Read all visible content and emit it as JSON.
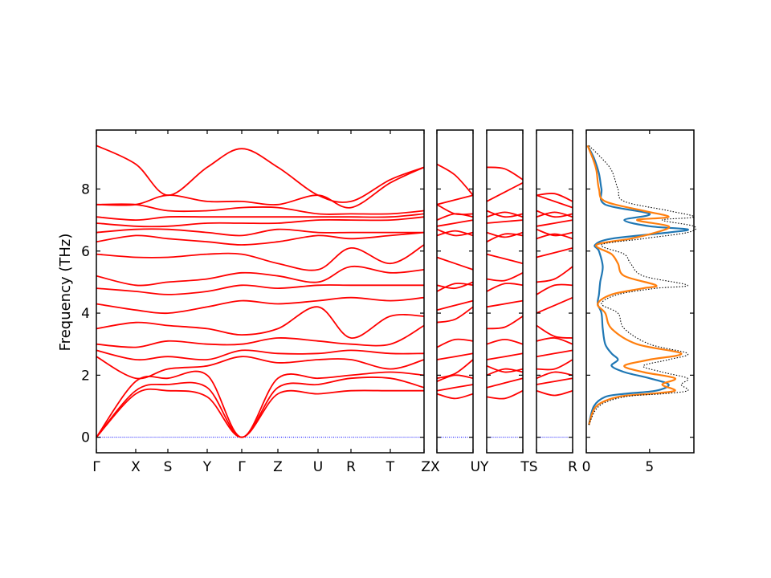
{
  "chart_data": [
    {
      "type": "line",
      "panel": "band-structure",
      "ylabel": "Frequency (THz)",
      "ylim": [
        -0.5,
        9.9
      ],
      "yticks": [
        0,
        2,
        4,
        6,
        8
      ],
      "grid": false,
      "legend": "none",
      "colors": {
        "bands": "#ff0000",
        "zero_line": "#0000ff"
      },
      "segments": [
        {
          "name": "seg1",
          "labels": [
            "Γ",
            "X",
            "S",
            "Y",
            "Γ",
            "Z",
            "U",
            "R",
            "T",
            "Z"
          ]
        },
        {
          "name": "seg2",
          "labels": [
            "X",
            "U"
          ]
        },
        {
          "name": "seg3",
          "labels": [
            "Y",
            "T"
          ]
        },
        {
          "name": "seg4",
          "labels": [
            "S",
            "R"
          ]
        }
      ],
      "point_label_combos": [
        "ZX",
        "UY",
        "TS"
      ],
      "bands_approx": [
        [
          [
            0,
            0
          ],
          [
            1,
            1.4
          ],
          [
            2,
            1.5
          ],
          [
            3,
            1.3
          ],
          [
            4,
            0
          ],
          [
            5,
            1.4
          ],
          [
            6,
            1.4
          ],
          [
            7,
            1.5
          ],
          [
            8,
            1.5
          ],
          [
            9,
            1.5
          ]
        ],
        [
          [
            0,
            0
          ],
          [
            1,
            1.5
          ],
          [
            2,
            1.7
          ],
          [
            3,
            1.6
          ],
          [
            4,
            0
          ],
          [
            5,
            1.6
          ],
          [
            6,
            1.7
          ],
          [
            7,
            1.9
          ],
          [
            8,
            1.9
          ],
          [
            9,
            1.6
          ]
        ],
        [
          [
            0,
            0
          ],
          [
            1,
            1.8
          ],
          [
            2,
            1.9
          ],
          [
            3,
            2.0
          ],
          [
            4,
            0
          ],
          [
            5,
            1.9
          ],
          [
            6,
            1.9
          ],
          [
            7,
            2.0
          ],
          [
            8,
            2.1
          ],
          [
            9,
            2.0
          ]
        ],
        [
          [
            0,
            2.6
          ],
          [
            1,
            1.9
          ],
          [
            2,
            2.2
          ],
          [
            3,
            2.3
          ],
          [
            4,
            2.6
          ],
          [
            5,
            2.4
          ],
          [
            6,
            2.5
          ],
          [
            7,
            2.5
          ],
          [
            8,
            2.2
          ],
          [
            9,
            2.5
          ]
        ],
        [
          [
            0,
            2.8
          ],
          [
            1,
            2.5
          ],
          [
            2,
            2.6
          ],
          [
            3,
            2.5
          ],
          [
            4,
            2.8
          ],
          [
            5,
            2.7
          ],
          [
            6,
            2.7
          ],
          [
            7,
            2.8
          ],
          [
            8,
            2.7
          ],
          [
            9,
            2.7
          ]
        ],
        [
          [
            0,
            3.0
          ],
          [
            1,
            2.9
          ],
          [
            2,
            3.1
          ],
          [
            3,
            3.0
          ],
          [
            4,
            3.0
          ],
          [
            5,
            3.2
          ],
          [
            6,
            3.1
          ],
          [
            7,
            3.0
          ],
          [
            8,
            3.0
          ],
          [
            9,
            3.6
          ]
        ],
        [
          [
            0,
            3.5
          ],
          [
            1,
            3.7
          ],
          [
            2,
            3.6
          ],
          [
            3,
            3.5
          ],
          [
            4,
            3.3
          ],
          [
            5,
            3.5
          ],
          [
            6,
            4.2
          ],
          [
            7,
            3.2
          ],
          [
            8,
            3.9
          ],
          [
            9,
            3.9
          ]
        ],
        [
          [
            0,
            4.3
          ],
          [
            1,
            4.1
          ],
          [
            2,
            4.0
          ],
          [
            3,
            4.2
          ],
          [
            4,
            4.4
          ],
          [
            5,
            4.3
          ],
          [
            6,
            4.4
          ],
          [
            7,
            4.5
          ],
          [
            8,
            4.4
          ],
          [
            9,
            4.5
          ]
        ],
        [
          [
            0,
            4.8
          ],
          [
            1,
            4.7
          ],
          [
            2,
            4.6
          ],
          [
            3,
            4.7
          ],
          [
            4,
            4.9
          ],
          [
            5,
            4.8
          ],
          [
            6,
            4.9
          ],
          [
            7,
            4.9
          ],
          [
            8,
            4.9
          ],
          [
            9,
            4.9
          ]
        ],
        [
          [
            0,
            5.2
          ],
          [
            1,
            4.9
          ],
          [
            2,
            5.0
          ],
          [
            3,
            5.1
          ],
          [
            4,
            5.3
          ],
          [
            5,
            5.2
          ],
          [
            6,
            5.0
          ],
          [
            7,
            5.5
          ],
          [
            8,
            5.3
          ],
          [
            9,
            5.4
          ]
        ],
        [
          [
            0,
            5.9
          ],
          [
            1,
            5.8
          ],
          [
            2,
            5.8
          ],
          [
            3,
            5.9
          ],
          [
            4,
            5.9
          ],
          [
            5,
            5.6
          ],
          [
            6,
            5.4
          ],
          [
            7,
            6.1
          ],
          [
            8,
            5.6
          ],
          [
            9,
            6.2
          ]
        ],
        [
          [
            0,
            6.3
          ],
          [
            1,
            6.5
          ],
          [
            2,
            6.4
          ],
          [
            3,
            6.3
          ],
          [
            4,
            6.2
          ],
          [
            5,
            6.3
          ],
          [
            6,
            6.5
          ],
          [
            7,
            6.4
          ],
          [
            8,
            6.5
          ],
          [
            9,
            6.6
          ]
        ],
        [
          [
            0,
            6.6
          ],
          [
            1,
            6.7
          ],
          [
            2,
            6.7
          ],
          [
            3,
            6.6
          ],
          [
            4,
            6.5
          ],
          [
            5,
            6.7
          ],
          [
            6,
            6.6
          ],
          [
            7,
            6.6
          ],
          [
            8,
            6.6
          ],
          [
            9,
            6.6
          ]
        ],
        [
          [
            0,
            6.9
          ],
          [
            1,
            6.8
          ],
          [
            2,
            6.8
          ],
          [
            3,
            6.9
          ],
          [
            4,
            6.9
          ],
          [
            5,
            6.9
          ],
          [
            6,
            7.0
          ],
          [
            7,
            7.0
          ],
          [
            8,
            7.0
          ],
          [
            9,
            7.1
          ]
        ],
        [
          [
            0,
            7.1
          ],
          [
            1,
            7.0
          ],
          [
            2,
            7.1
          ],
          [
            3,
            7.1
          ],
          [
            4,
            7.1
          ],
          [
            5,
            7.1
          ],
          [
            6,
            7.1
          ],
          [
            7,
            7.1
          ],
          [
            8,
            7.1
          ],
          [
            9,
            7.2
          ]
        ],
        [
          [
            0,
            7.5
          ],
          [
            1,
            7.5
          ],
          [
            2,
            7.3
          ],
          [
            3,
            7.3
          ],
          [
            4,
            7.4
          ],
          [
            5,
            7.4
          ],
          [
            6,
            7.2
          ],
          [
            7,
            7.2
          ],
          [
            8,
            7.2
          ],
          [
            9,
            7.3
          ]
        ],
        [
          [
            0,
            7.5
          ],
          [
            1,
            7.5
          ],
          [
            2,
            7.8
          ],
          [
            3,
            7.6
          ],
          [
            4,
            7.6
          ],
          [
            5,
            7.5
          ],
          [
            6,
            7.8
          ],
          [
            7,
            7.4
          ],
          [
            8,
            8.2
          ],
          [
            9,
            8.7
          ]
        ],
        [
          [
            0,
            9.4
          ],
          [
            1,
            8.8
          ],
          [
            2,
            7.8
          ],
          [
            3,
            8.7
          ],
          [
            4,
            9.3
          ],
          [
            5,
            8.7
          ],
          [
            6,
            7.8
          ],
          [
            7,
            7.6
          ],
          [
            8,
            8.3
          ],
          [
            9,
            8.7
          ]
        ]
      ]
    },
    {
      "type": "line",
      "panel": "dos",
      "xlim": [
        0,
        8.5
      ],
      "xticks": [
        0,
        5
      ],
      "ylim": [
        -0.5,
        9.9
      ],
      "legend": "none",
      "series": [
        {
          "color": "#1f77b4",
          "style": "solid",
          "points": [
            [
              0.2,
              0.4
            ],
            [
              0.6,
              1.0
            ],
            [
              1.5,
              1.3
            ],
            [
              3.0,
              1.4
            ],
            [
              5.5,
              1.5
            ],
            [
              6.5,
              1.7
            ],
            [
              5.0,
              1.9
            ],
            [
              3.0,
              2.1
            ],
            [
              2.0,
              2.3
            ],
            [
              2.5,
              2.5
            ],
            [
              2.0,
              2.7
            ],
            [
              1.5,
              3.0
            ],
            [
              1.3,
              3.5
            ],
            [
              1.2,
              4.0
            ],
            [
              0.9,
              4.3
            ],
            [
              1.0,
              4.6
            ],
            [
              1.1,
              5.0
            ],
            [
              1.3,
              5.5
            ],
            [
              1.0,
              6.0
            ],
            [
              0.7,
              6.2
            ],
            [
              2.0,
              6.4
            ],
            [
              6.5,
              6.6
            ],
            [
              8.0,
              6.7
            ],
            [
              5.0,
              6.8
            ],
            [
              3.0,
              7.0
            ],
            [
              5.0,
              7.2
            ],
            [
              1.5,
              7.5
            ],
            [
              1.2,
              8.0
            ],
            [
              1.0,
              8.5
            ],
            [
              0.6,
              9.0
            ],
            [
              0.1,
              9.4
            ]
          ]
        },
        {
          "color": "#ff7f0e",
          "style": "solid",
          "points": [
            [
              0.2,
              0.4
            ],
            [
              0.8,
              1.0
            ],
            [
              2.5,
              1.3
            ],
            [
              5.0,
              1.4
            ],
            [
              7.0,
              1.5
            ],
            [
              6.0,
              1.7
            ],
            [
              7.0,
              1.9
            ],
            [
              4.5,
              2.1
            ],
            [
              3.0,
              2.3
            ],
            [
              5.0,
              2.5
            ],
            [
              7.5,
              2.7
            ],
            [
              4.0,
              3.0
            ],
            [
              2.0,
              3.5
            ],
            [
              1.5,
              4.0
            ],
            [
              0.9,
              4.3
            ],
            [
              2.0,
              4.6
            ],
            [
              4.5,
              4.8
            ],
            [
              5.5,
              4.9
            ],
            [
              3.0,
              5.2
            ],
            [
              2.5,
              5.6
            ],
            [
              2.0,
              5.9
            ],
            [
              0.8,
              6.2
            ],
            [
              3.5,
              6.4
            ],
            [
              5.5,
              6.6
            ],
            [
              6.5,
              6.8
            ],
            [
              4.0,
              7.0
            ],
            [
              6.5,
              7.1
            ],
            [
              4.5,
              7.3
            ],
            [
              1.5,
              7.6
            ],
            [
              1.0,
              8.0
            ],
            [
              0.8,
              8.6
            ],
            [
              0.5,
              9.0
            ],
            [
              0.1,
              9.4
            ]
          ]
        },
        {
          "color": "#000000",
          "style": "dotted",
          "points": [
            [
              0.2,
              0.4
            ],
            [
              1.0,
              1.0
            ],
            [
              3.0,
              1.3
            ],
            [
              6.0,
              1.4
            ],
            [
              8.0,
              1.5
            ],
            [
              7.5,
              1.7
            ],
            [
              8.0,
              1.9
            ],
            [
              6.0,
              2.1
            ],
            [
              4.5,
              2.3
            ],
            [
              6.5,
              2.5
            ],
            [
              8.0,
              2.7
            ],
            [
              5.0,
              3.0
            ],
            [
              3.0,
              3.5
            ],
            [
              2.5,
              4.0
            ],
            [
              1.2,
              4.3
            ],
            [
              2.5,
              4.6
            ],
            [
              5.5,
              4.8
            ],
            [
              8.0,
              4.9
            ],
            [
              4.5,
              5.2
            ],
            [
              3.5,
              5.6
            ],
            [
              3.0,
              5.9
            ],
            [
              1.2,
              6.2
            ],
            [
              4.5,
              6.4
            ],
            [
              8.0,
              6.6
            ],
            [
              8.5,
              6.8
            ],
            [
              6.0,
              7.0
            ],
            [
              8.5,
              7.1
            ],
            [
              6.5,
              7.3
            ],
            [
              3.0,
              7.6
            ],
            [
              2.5,
              8.0
            ],
            [
              2.0,
              8.6
            ],
            [
              1.2,
              9.0
            ],
            [
              0.2,
              9.4
            ]
          ]
        }
      ]
    }
  ]
}
